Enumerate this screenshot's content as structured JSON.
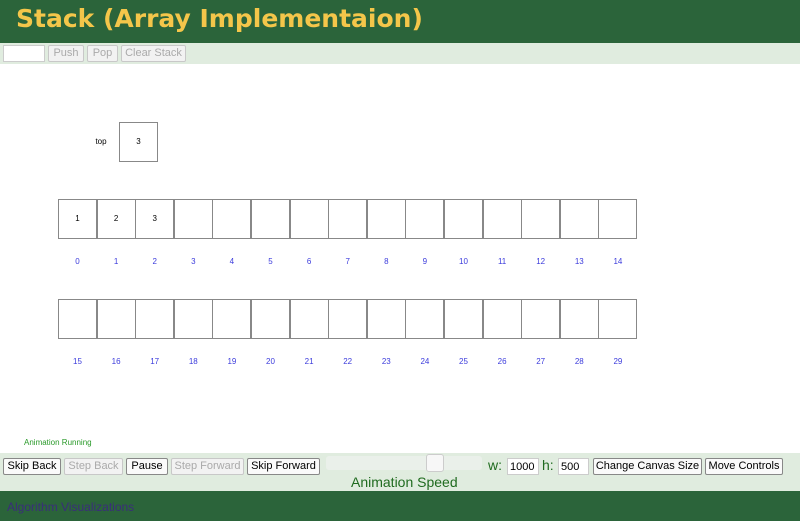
{
  "header": {
    "title": "Stack (Array Implementaion)"
  },
  "toolbar": {
    "input_value": "",
    "push": "Push",
    "pop": "Pop",
    "clear": "Clear Stack"
  },
  "canvas": {
    "top_label": "top",
    "top_value": "3",
    "row1_values": [
      "1",
      "2",
      "3",
      "",
      "",
      "",
      "",
      "",
      "",
      "",
      "",
      "",
      "",
      "",
      ""
    ],
    "row1_indices": [
      "0",
      "1",
      "2",
      "3",
      "4",
      "5",
      "6",
      "7",
      "8",
      "9",
      "10",
      "11",
      "12",
      "13",
      "14"
    ],
    "row2_values": [
      "",
      "",
      "",
      "",
      "",
      "",
      "",
      "",
      "",
      "",
      "",
      "",
      "",
      "",
      ""
    ],
    "row2_indices": [
      "15",
      "16",
      "17",
      "18",
      "19",
      "20",
      "21",
      "22",
      "23",
      "24",
      "25",
      "26",
      "27",
      "28",
      "29"
    ]
  },
  "status": "Animation Running",
  "controls": {
    "skip_back": "Skip Back",
    "step_back": "Step Back",
    "pause": "Pause",
    "step_forward": "Step Forward",
    "skip_forward": "Skip Forward",
    "speed_label": "Animation Speed",
    "speed_fraction": 0.75,
    "w_label": "w:",
    "w_value": "1000",
    "h_label": "h:",
    "h_value": "500",
    "change_size": "Change Canvas Size",
    "move_controls": "Move Controls"
  },
  "footer": {
    "text": "Algorithm Visualizations"
  }
}
